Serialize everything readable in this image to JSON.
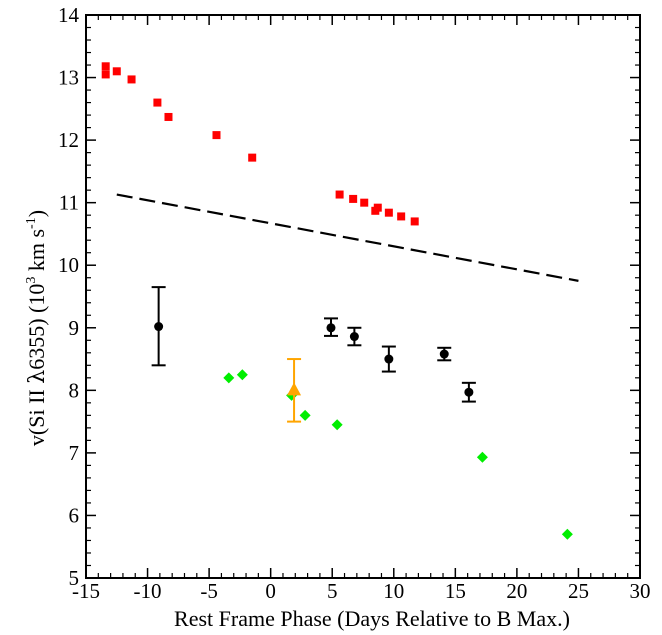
{
  "chart_data": {
    "type": "scatter",
    "xlabel": "Rest Frame Phase (Days Relative to B Max.)",
    "ylabel": {
      "prefix": "v(Si II ",
      "lambda": "λ",
      "mid": "6355) (10",
      "exp3": "3",
      "unit": " km s",
      "expm1": "-1",
      "close": ")"
    },
    "xlim": [
      -15,
      30
    ],
    "ylim": [
      5,
      14
    ],
    "xticks": [
      -15,
      -10,
      -5,
      0,
      5,
      10,
      15,
      20,
      25,
      30
    ],
    "yticks": [
      5,
      6,
      7,
      8,
      9,
      10,
      11,
      12,
      13,
      14
    ],
    "grid": false,
    "series": [
      {
        "marker": "square",
        "color": "#ff0000",
        "points": [
          [
            -13.4,
            13.18
          ],
          [
            -13.4,
            13.05
          ],
          [
            -12.5,
            13.1
          ],
          [
            -11.3,
            12.97
          ],
          [
            -9.2,
            12.6
          ],
          [
            -8.3,
            12.37
          ],
          [
            -4.4,
            12.08
          ],
          [
            -1.5,
            11.72
          ],
          [
            5.6,
            11.13
          ],
          [
            6.7,
            11.06
          ],
          [
            7.6,
            11.0
          ],
          [
            8.5,
            10.87
          ],
          [
            8.7,
            10.92
          ],
          [
            9.6,
            10.84
          ],
          [
            10.6,
            10.78
          ],
          [
            11.7,
            10.7
          ]
        ]
      },
      {
        "marker": "circle",
        "color": "#000000",
        "points": [
          {
            "x": -9.1,
            "y": 9.02,
            "err": [
              8.4,
              9.65
            ]
          },
          {
            "x": 4.9,
            "y": 9.0,
            "err": [
              8.87,
              9.15
            ]
          },
          {
            "x": 6.8,
            "y": 8.86,
            "err": [
              8.72,
              9.0
            ]
          },
          {
            "x": 9.6,
            "y": 8.5,
            "err": [
              8.3,
              8.7
            ]
          },
          {
            "x": 14.1,
            "y": 8.58,
            "err": [
              8.48,
              8.68
            ]
          },
          {
            "x": 16.1,
            "y": 7.97,
            "err": [
              7.82,
              8.12
            ]
          }
        ]
      },
      {
        "marker": "diamond",
        "color": "#00ee00",
        "points": [
          [
            -3.4,
            8.2
          ],
          [
            -2.3,
            8.25
          ],
          [
            1.7,
            7.92
          ],
          [
            2.8,
            7.6
          ],
          [
            5.4,
            7.45
          ],
          [
            17.2,
            6.93
          ],
          [
            24.1,
            5.7
          ]
        ]
      },
      {
        "marker": "triangle",
        "color": "#ffa500",
        "points": [
          {
            "x": 1.9,
            "y": 8.0,
            "err": [
              7.5,
              8.5
            ]
          }
        ]
      }
    ],
    "lines": [
      {
        "style": "dashed",
        "color": "#000000",
        "from": [
          -12.5,
          11.13
        ],
        "to": [
          25,
          9.75
        ]
      }
    ]
  }
}
